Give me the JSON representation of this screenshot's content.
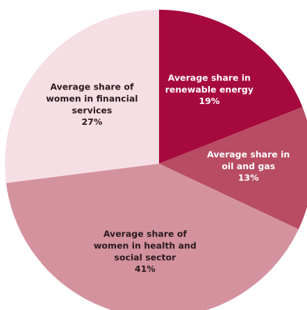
{
  "chart_data": {
    "type": "pie",
    "categories": [
      "Average share in renewable energy",
      "Average share in oil and gas",
      "Average share of women in health and social sector",
      "Average share of women in financial services"
    ],
    "values": [
      19,
      13,
      41,
      27
    ],
    "value_labels": [
      "19%",
      "13%",
      "41%",
      "27%"
    ],
    "colors": [
      "#a6093d",
      "#b84c63",
      "#d4929f",
      "#f6dfe4"
    ]
  }
}
